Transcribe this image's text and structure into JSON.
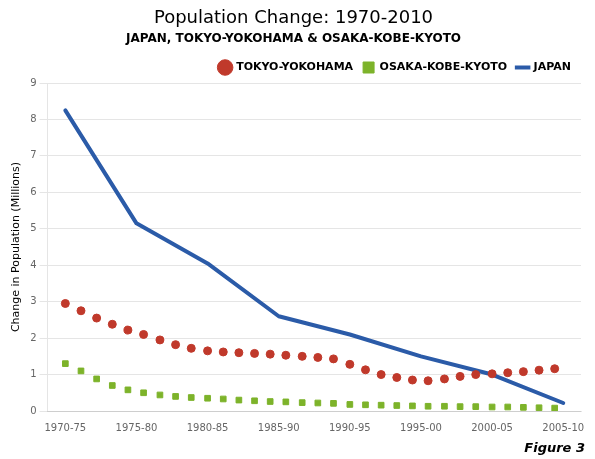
{
  "chart_data": {
    "type": "line",
    "title": "Population Change: 1970-2010",
    "subtitle": "JAPAN, TOKYO-YOKOHAMA & OSAKA-KOBE-KYOTO",
    "ylabel": "Change in Population (Millions)",
    "annotations": [
      "Figure 3"
    ],
    "xlim": [
      -0.25,
      7.25
    ],
    "xticks": [
      {
        "value": 0,
        "label": "1970-75"
      },
      {
        "value": 1,
        "label": "1975-80"
      },
      {
        "value": 2,
        "label": "1980-85"
      },
      {
        "value": 3,
        "label": "1985-90"
      },
      {
        "value": 4,
        "label": "1990-95"
      },
      {
        "value": 5,
        "label": "1995-00"
      },
      {
        "value": 6,
        "label": "2000-05"
      },
      {
        "value": 7,
        "label": "2005-10"
      }
    ],
    "ylim": [
      0,
      9
    ],
    "yticks": [
      0,
      1,
      2,
      3,
      4,
      5,
      6,
      7,
      8,
      9
    ],
    "grid": "y",
    "legend": "upper right",
    "series": [
      {
        "name": "JAPAN",
        "type": "line",
        "color": "#2B5BA8",
        "line_style": "solid",
        "marker": "none",
        "x": [
          0,
          1,
          2,
          3,
          4,
          5,
          6,
          7
        ],
        "values": [
          8.25,
          5.15,
          4.05,
          2.6,
          2.1,
          1.5,
          1.0,
          0.22
        ]
      },
      {
        "name": "TOKYO-YOKOHAMA",
        "type": "scatter",
        "color": "#C0392B",
        "line_style": "none",
        "marker": "circle",
        "x": [
          0.0,
          0.22,
          0.44,
          0.66,
          0.88,
          1.1,
          1.33,
          1.55,
          1.77,
          2.0,
          2.22,
          2.44,
          2.66,
          2.88,
          3.1,
          3.33,
          3.55,
          3.77,
          4.0,
          4.22,
          4.44,
          4.66,
          4.88,
          5.1,
          5.33,
          5.55,
          5.77,
          6.0,
          6.22,
          6.44,
          6.66,
          6.88
        ],
        "values": [
          2.95,
          2.75,
          2.55,
          2.38,
          2.22,
          2.1,
          1.95,
          1.82,
          1.72,
          1.65,
          1.62,
          1.6,
          1.58,
          1.56,
          1.53,
          1.5,
          1.47,
          1.43,
          1.28,
          1.13,
          1.0,
          0.92,
          0.85,
          0.83,
          0.88,
          0.95,
          1.0,
          1.02,
          1.05,
          1.08,
          1.12,
          1.16
        ]
      },
      {
        "name": "OSAKA-KOBE-KYOTO",
        "type": "scatter",
        "color": "#7DB32A",
        "line_style": "none",
        "marker": "square",
        "x": [
          0.0,
          0.22,
          0.44,
          0.66,
          0.88,
          1.1,
          1.33,
          1.55,
          1.77,
          2.0,
          2.22,
          2.44,
          2.66,
          2.88,
          3.1,
          3.33,
          3.55,
          3.77,
          4.0,
          4.22,
          4.44,
          4.66,
          4.88,
          5.1,
          5.33,
          5.55,
          5.77,
          6.0,
          6.22,
          6.44,
          6.66,
          6.88
        ],
        "values": [
          1.3,
          1.1,
          0.88,
          0.7,
          0.58,
          0.5,
          0.44,
          0.4,
          0.37,
          0.35,
          0.33,
          0.3,
          0.28,
          0.26,
          0.25,
          0.23,
          0.22,
          0.21,
          0.18,
          0.17,
          0.16,
          0.15,
          0.14,
          0.13,
          0.13,
          0.12,
          0.12,
          0.11,
          0.11,
          0.1,
          0.09,
          0.08
        ]
      }
    ]
  }
}
